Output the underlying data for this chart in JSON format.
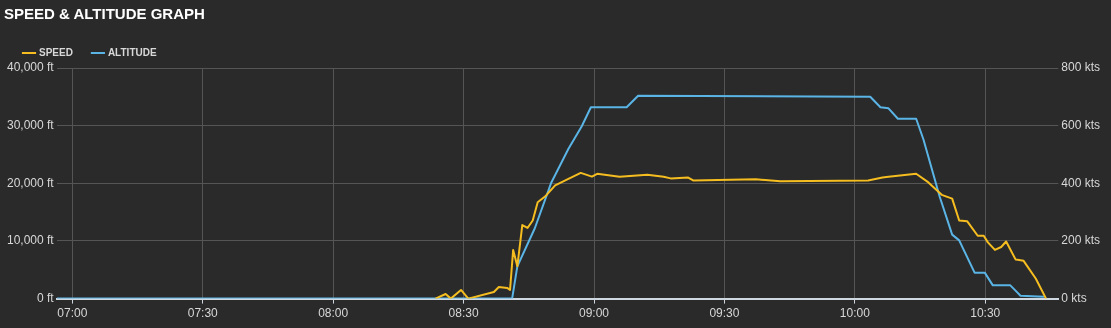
{
  "chart_data": {
    "type": "line",
    "title": "SPEED & ALTITUDE GRAPH",
    "xlim": [
      6.94,
      10.78
    ],
    "xticks": [
      {
        "value": 7,
        "label": "07:00"
      },
      {
        "value": 7.5,
        "label": "07:30"
      },
      {
        "value": 8,
        "label": "08:00"
      },
      {
        "value": 8.5,
        "label": "08:30"
      },
      {
        "value": 9,
        "label": "09:00"
      },
      {
        "value": 9.5,
        "label": "09:30"
      },
      {
        "value": 10,
        "label": "10:00"
      },
      {
        "value": 10.5,
        "label": "10:30"
      }
    ],
    "ylim": [
      0,
      40000
    ],
    "yticks": [
      {
        "value": 0,
        "label": "0 ft"
      },
      {
        "value": 10000,
        "label": "10,000 ft"
      },
      {
        "value": 20000,
        "label": "20,000 ft"
      },
      {
        "value": 30000,
        "label": "30,000 ft"
      },
      {
        "value": 40000,
        "label": "40,000 ft"
      }
    ],
    "y2lim": [
      0,
      800
    ],
    "y2ticks": [
      {
        "value": 0,
        "label": "0 kts"
      },
      {
        "value": 200,
        "label": "200 kts"
      },
      {
        "value": 400,
        "label": "400 kts"
      },
      {
        "value": 600,
        "label": "600 kts"
      },
      {
        "value": 800,
        "label": "800 kts"
      }
    ],
    "grid": true,
    "legend": "top left",
    "marker": "none",
    "line_style": "solid",
    "series": [
      {
        "name": "SPEED",
        "color": "#f5bd1f",
        "axis": "y2",
        "x": [
          8.392,
          8.431,
          8.451,
          8.49,
          8.518,
          8.616,
          8.635,
          8.667,
          8.678,
          8.69,
          8.706,
          8.725,
          8.745,
          8.765,
          8.784,
          8.812,
          8.851,
          8.89,
          8.949,
          8.992,
          9.012,
          9.098,
          9.204,
          9.267,
          9.294,
          9.361,
          9.38,
          9.62,
          9.714,
          10.051,
          10.106,
          10.129,
          10.235,
          10.282,
          10.333,
          10.373,
          10.4,
          10.431,
          10.471,
          10.494,
          10.51,
          10.537,
          10.561,
          10.58,
          10.616,
          10.647,
          10.694,
          10.733
        ],
        "values": [
          0,
          16,
          0,
          30,
          0,
          23,
          40,
          37,
          30,
          169,
          112,
          255,
          245,
          271,
          334,
          354,
          393,
          410,
          436,
          423,
          433,
          423,
          430,
          423,
          417,
          420,
          410,
          414,
          407,
          410,
          420,
          423,
          433,
          403,
          360,
          347,
          271,
          268,
          218,
          218,
          195,
          169,
          179,
          198,
          136,
          131,
          69,
          0
        ]
      },
      {
        "name": "ALTITUDE",
        "color": "#5ab4e5",
        "axis": "y",
        "x": [
          6.94,
          8.686,
          8.706,
          8.773,
          8.835,
          8.902,
          8.953,
          8.988,
          9.125,
          9.169,
          10.059,
          10.098,
          10.129,
          10.165,
          10.235,
          10.263,
          10.325,
          10.373,
          10.4,
          10.459,
          10.498,
          10.529,
          10.596,
          10.635,
          10.725
        ],
        "values": [
          0,
          0,
          5600,
          12200,
          20000,
          26000,
          29900,
          33200,
          33200,
          35200,
          35000,
          33200,
          33000,
          31200,
          31200,
          27600,
          17700,
          11100,
          10100,
          4500,
          4500,
          2300,
          2300,
          500,
          300
        ]
      }
    ]
  }
}
